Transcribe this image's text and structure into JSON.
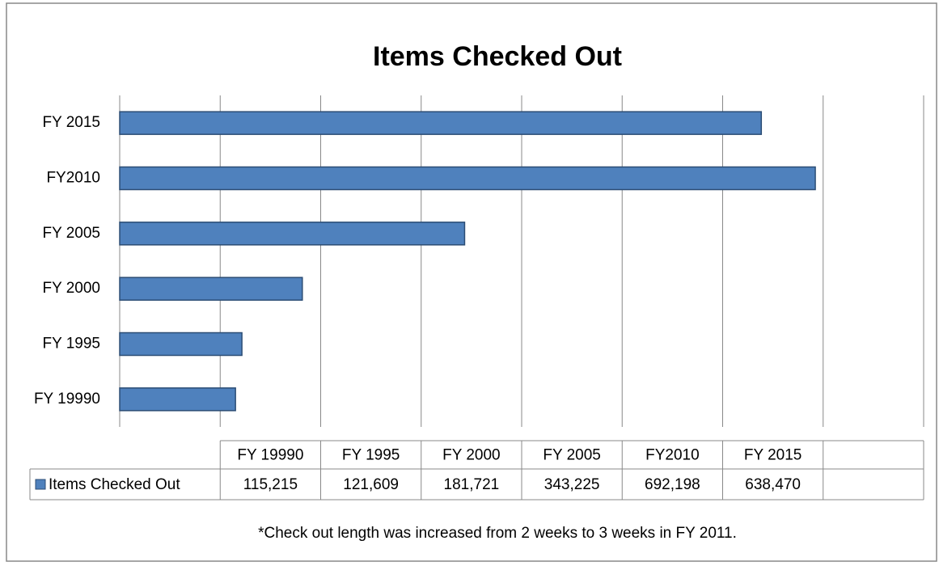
{
  "chart_data": {
    "type": "bar",
    "horizontal": true,
    "title": "Items Checked Out",
    "categories": [
      "FY 19990",
      "FY 1995",
      "FY 2000",
      "FY 2005",
      "FY2010",
      "FY 2015"
    ],
    "series": [
      {
        "name": "Items Checked Out",
        "color": "#4f81bd",
        "values": [
          115215,
          121609,
          181721,
          343225,
          692198,
          638470
        ],
        "value_labels": [
          "115,215",
          "121,609",
          "181,721",
          "343,225",
          "692,198",
          "638,470"
        ]
      }
    ],
    "xlim": [
      0,
      800000
    ],
    "xticks": [
      0,
      100000,
      200000,
      300000,
      400000,
      500000,
      600000,
      700000,
      800000
    ],
    "grid": true,
    "annotation": "*Check out length was increased from 2 weeks to 3 weeks in FY 2011."
  }
}
